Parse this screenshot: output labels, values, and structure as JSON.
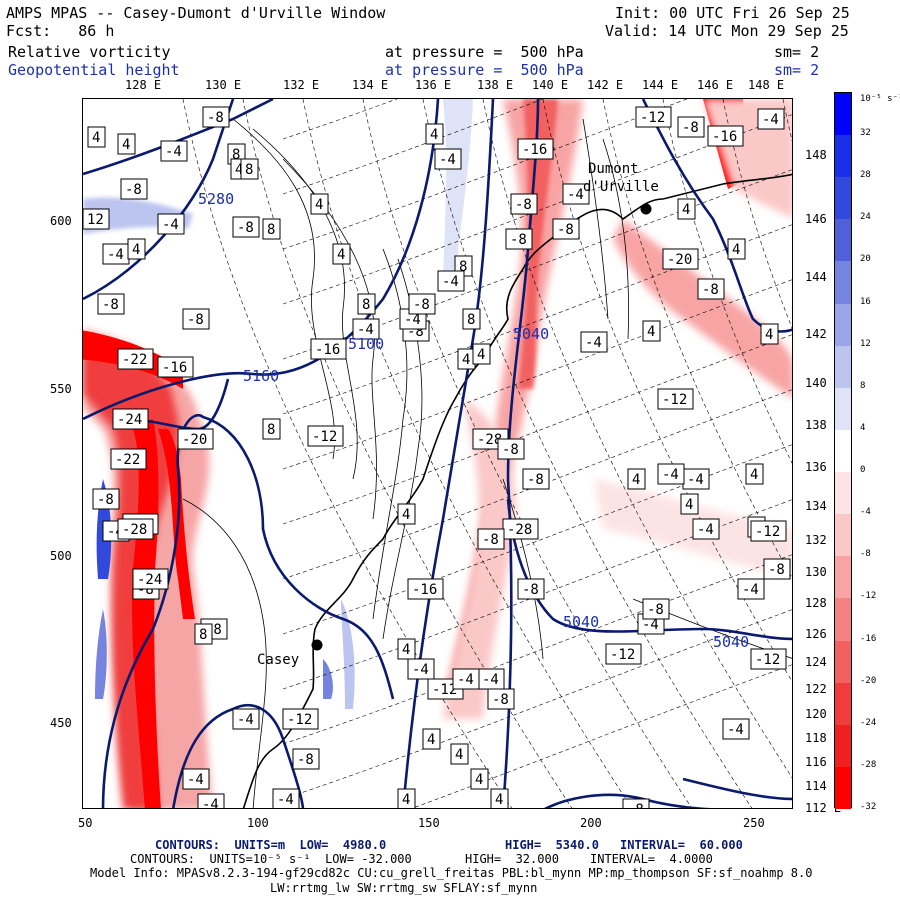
{
  "header": {
    "title": "AMPS MPAS -- Casey-Dumont d'Urville Window",
    "fcst": "Fcst:   86 h",
    "init": "Init: 00 UTC Fri 26 Sep 25",
    "valid": "Valid: 14 UTC Mon 29 Sep 25",
    "field1": "Relative vorticity",
    "field2": "Geopotential height",
    "pres1": "at pressure =  500 hPa",
    "pres2": "at pressure =  500 hPa",
    "sm1": "sm= 2",
    "sm2": "sm= 2"
  },
  "top_lon_labels": [
    "128 E",
    "130 E",
    "132 E",
    "134 E",
    "136 E",
    "138 E",
    "140 E",
    "142 E",
    "144 E",
    "146 E",
    "148 E"
  ],
  "right_lat_labels": [
    "148 E",
    "146 E",
    "144 E",
    "142 E",
    "140 E",
    "138 E",
    "136 E",
    "134 E",
    "132 E",
    "130 E",
    "128 E",
    "126 E",
    "124 E",
    "122 E",
    "120 E",
    "118 E",
    "116 E",
    "114 E",
    "112 E"
  ],
  "x_ticks": [
    "50",
    "100",
    "150",
    "200",
    "250"
  ],
  "y_ticks": [
    "600",
    "550",
    "500",
    "450"
  ],
  "colorbar": {
    "units": "10⁻⁵ s⁻¹",
    "labels": [
      "32",
      "28",
      "24",
      "20",
      "16",
      "12",
      "8",
      "4",
      "0",
      "-4",
      "-8",
      "-12",
      "-16",
      "-20",
      "-24",
      "-28",
      "-32"
    ],
    "colors": [
      "#0000ff",
      "#1a2fe8",
      "#3249dd",
      "#5060d8",
      "#7585df",
      "#9aa6e8",
      "#bcc4f0",
      "#dfe3f8",
      "#ffffff",
      "#fde4e4",
      "#fbc8c8",
      "#f8a4a4",
      "#f58282",
      "#f26060",
      "#f03c3c",
      "#ee2020",
      "#ff0000"
    ]
  },
  "places": {
    "casey": "Casey",
    "dumont": "Dumont",
    "durville": "d'Urville"
  },
  "height_labels": [
    "5280",
    "5160",
    "5100",
    "5040",
    "5040",
    "5040"
  ],
  "vort_labels": [
    "4",
    "4",
    "-4",
    "-8",
    "-8",
    "-4",
    "8",
    "4",
    "-8",
    "12",
    "-4",
    "4",
    "8",
    "4",
    "8",
    "-4",
    "8",
    "4",
    "-8",
    "4",
    "-4",
    "8",
    "-16",
    "-8",
    "-4",
    "-8",
    "-8",
    "-12",
    "-8",
    "-16",
    "-4",
    "-8",
    "-8",
    "-12",
    "-16",
    "-4",
    "8",
    "4",
    "-4",
    "4",
    "-8",
    "8",
    "-4",
    "4",
    "-22",
    "-16",
    "-24",
    "-20",
    "-22",
    "-28",
    "-8",
    "-4",
    "-8",
    "-28",
    "-24",
    "-8",
    "8",
    "-4",
    "-4",
    "-4",
    "-4",
    "-8",
    "-12",
    "-8",
    "4",
    "4",
    "-28",
    "-12",
    "-8",
    "-12",
    "-4",
    "-28",
    "-8",
    "-8",
    "-8",
    "-4",
    "4",
    "-4",
    "-8",
    "-4",
    "4",
    "4",
    "4",
    "-12",
    "-12",
    "-8",
    "-12",
    "-4",
    "-8",
    "-8",
    "-20",
    "4",
    "4",
    "4",
    "-4",
    "-8",
    "4",
    "4",
    "-16",
    "-4",
    "-4",
    "4",
    "4",
    "-4",
    "4",
    "4"
  ],
  "footer": {
    "line1_a": "CONTOURS:  UNITS=m  LOW=  4980.0",
    "line1_b": "HIGH=  5340.0",
    "line1_c": "INTERVAL=  60.000",
    "line2_a": "CONTOURS:  UNITS=10⁻⁵ s⁻¹  LOW= -32.000",
    "line2_b": "HIGH=  32.000",
    "line2_c": "INTERVAL=  4.0000",
    "model_info": "Model Info: MPASv8.2.3-194-gf29cd82c CU:cu_grell_freitas PBL:bl_mynn MP:mp_thompson SF:sf_noahmp 8.0",
    "model_info2": "LW:rrtmg_lw SW:rrtmg_sw SFLAY:sf_mynn"
  }
}
